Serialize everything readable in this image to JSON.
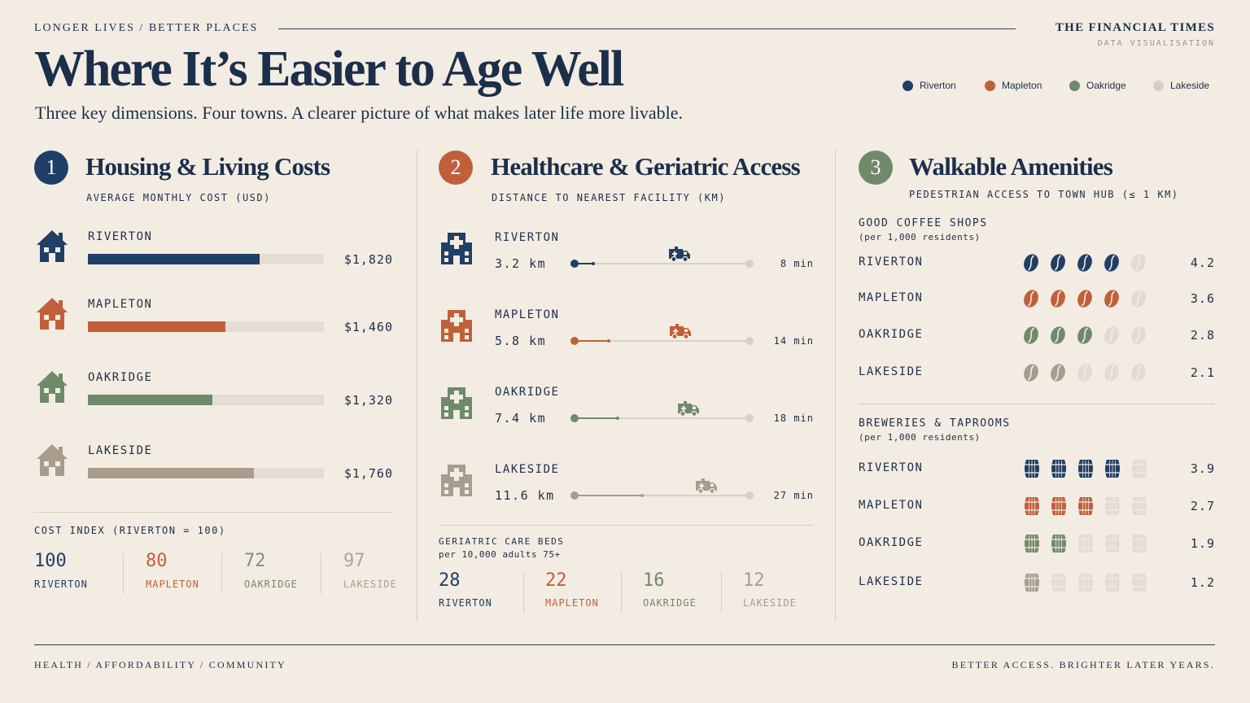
{
  "colors": {
    "riverton": "#1f3f66",
    "mapleton": "#c0603b",
    "oakridge": "#6f8a6a",
    "lakeside": "#a89c8d",
    "faded": "#e2dbd1",
    "ink": "#1c2f4a"
  },
  "header": {
    "kicker": "LONGER LIVES  /  BETTER PLACES",
    "title": "Where It’s Easier to Age Well",
    "subtitle": "Three key dimensions. Four towns. A clearer picture of what makes later life more livable.",
    "publisher": "THE FINANCIAL TIMES",
    "publisher_sub": "DATA VISUALISATION"
  },
  "legend": [
    {
      "label": "Riverton",
      "key": "riverton"
    },
    {
      "label": "Mapleton",
      "key": "mapleton"
    },
    {
      "label": "Oakridge",
      "key": "oakridge"
    },
    {
      "label": "Lakeside",
      "key": "lakeside"
    }
  ],
  "chart_data": [
    {
      "type": "bar",
      "number": "1",
      "title": "Housing & Living Costs",
      "subtitle": "AVERAGE MONTHLY COST (USD)",
      "icon": "house-icon",
      "categories": [
        "RIVERTON",
        "MAPLETON",
        "OAKRIDGE",
        "LAKESIDE"
      ],
      "values": [
        1820,
        1460,
        1320,
        1760
      ],
      "value_labels": [
        "$1,820",
        "$1,460",
        "$1,320",
        "$1,760"
      ],
      "xlim": [
        0,
        2500
      ],
      "index": {
        "title": "COST INDEX (RIVERTON = 100)",
        "values": [
          "100",
          "80",
          "72",
          "97"
        ],
        "labels": [
          "RIVERTON",
          "MAPLETON",
          "OAKRIDGE",
          "LAKESIDE"
        ]
      }
    },
    {
      "type": "line",
      "number": "2",
      "title": "Healthcare & Geriatric Access",
      "subtitle": "DISTANCE TO NEAREST FACILITY (KM)",
      "icon": "hospital-icon",
      "categories": [
        "RIVERTON",
        "MAPLETON",
        "OAKRIDGE",
        "LAKESIDE"
      ],
      "distance_km": [
        3.2,
        5.8,
        7.4,
        11.6
      ],
      "distance_labels": [
        "3.2 km",
        "5.8 km",
        "7.4 km",
        "11.6 km"
      ],
      "drive_labels": [
        "8 min",
        "14 min",
        "18 min",
        "27 min"
      ],
      "xlim": [
        0,
        30
      ],
      "beds": {
        "title": "GERIATRIC CARE BEDS",
        "subtitle": "per 10,000 adults 75+",
        "values": [
          "28",
          "22",
          "16",
          "12"
        ],
        "labels": [
          "RIVERTON",
          "MAPLETON",
          "OAKRIDGE",
          "LAKESIDE"
        ]
      }
    },
    {
      "type": "table",
      "number": "3",
      "title": "Walkable Amenities",
      "subtitle": "PEDESTRIAN ACCESS TO TOWN HUB (≤ 1 KM)",
      "groups": [
        {
          "title": "GOOD COFFEE SHOPS",
          "subtitle": "(per 1,000 residents)",
          "icon": "coffee-bean-icon",
          "categories": [
            "RIVERTON",
            "MAPLETON",
            "OAKRIDGE",
            "LAKESIDE"
          ],
          "values": [
            4.2,
            3.6,
            2.8,
            2.1
          ],
          "value_labels": [
            "4.2",
            "3.6",
            "2.8",
            "2.1"
          ],
          "filled": [
            4,
            4,
            3,
            2
          ]
        },
        {
          "title": "BREWERIES & TAPROOMS",
          "subtitle": "(per 1,000 residents)",
          "icon": "barrel-icon",
          "categories": [
            "RIVERTON",
            "MAPLETON",
            "OAKRIDGE",
            "LAKESIDE"
          ],
          "values": [
            3.9,
            2.7,
            1.9,
            1.2
          ],
          "value_labels": [
            "3.9",
            "2.7",
            "1.9",
            "1.2"
          ],
          "filled": [
            4,
            3,
            2,
            1
          ]
        }
      ]
    }
  ],
  "footer": {
    "left": "HEALTH  /  AFFORDABILITY  /  COMMUNITY",
    "right": "BETTER ACCESS. BRIGHTER LATER YEARS."
  }
}
